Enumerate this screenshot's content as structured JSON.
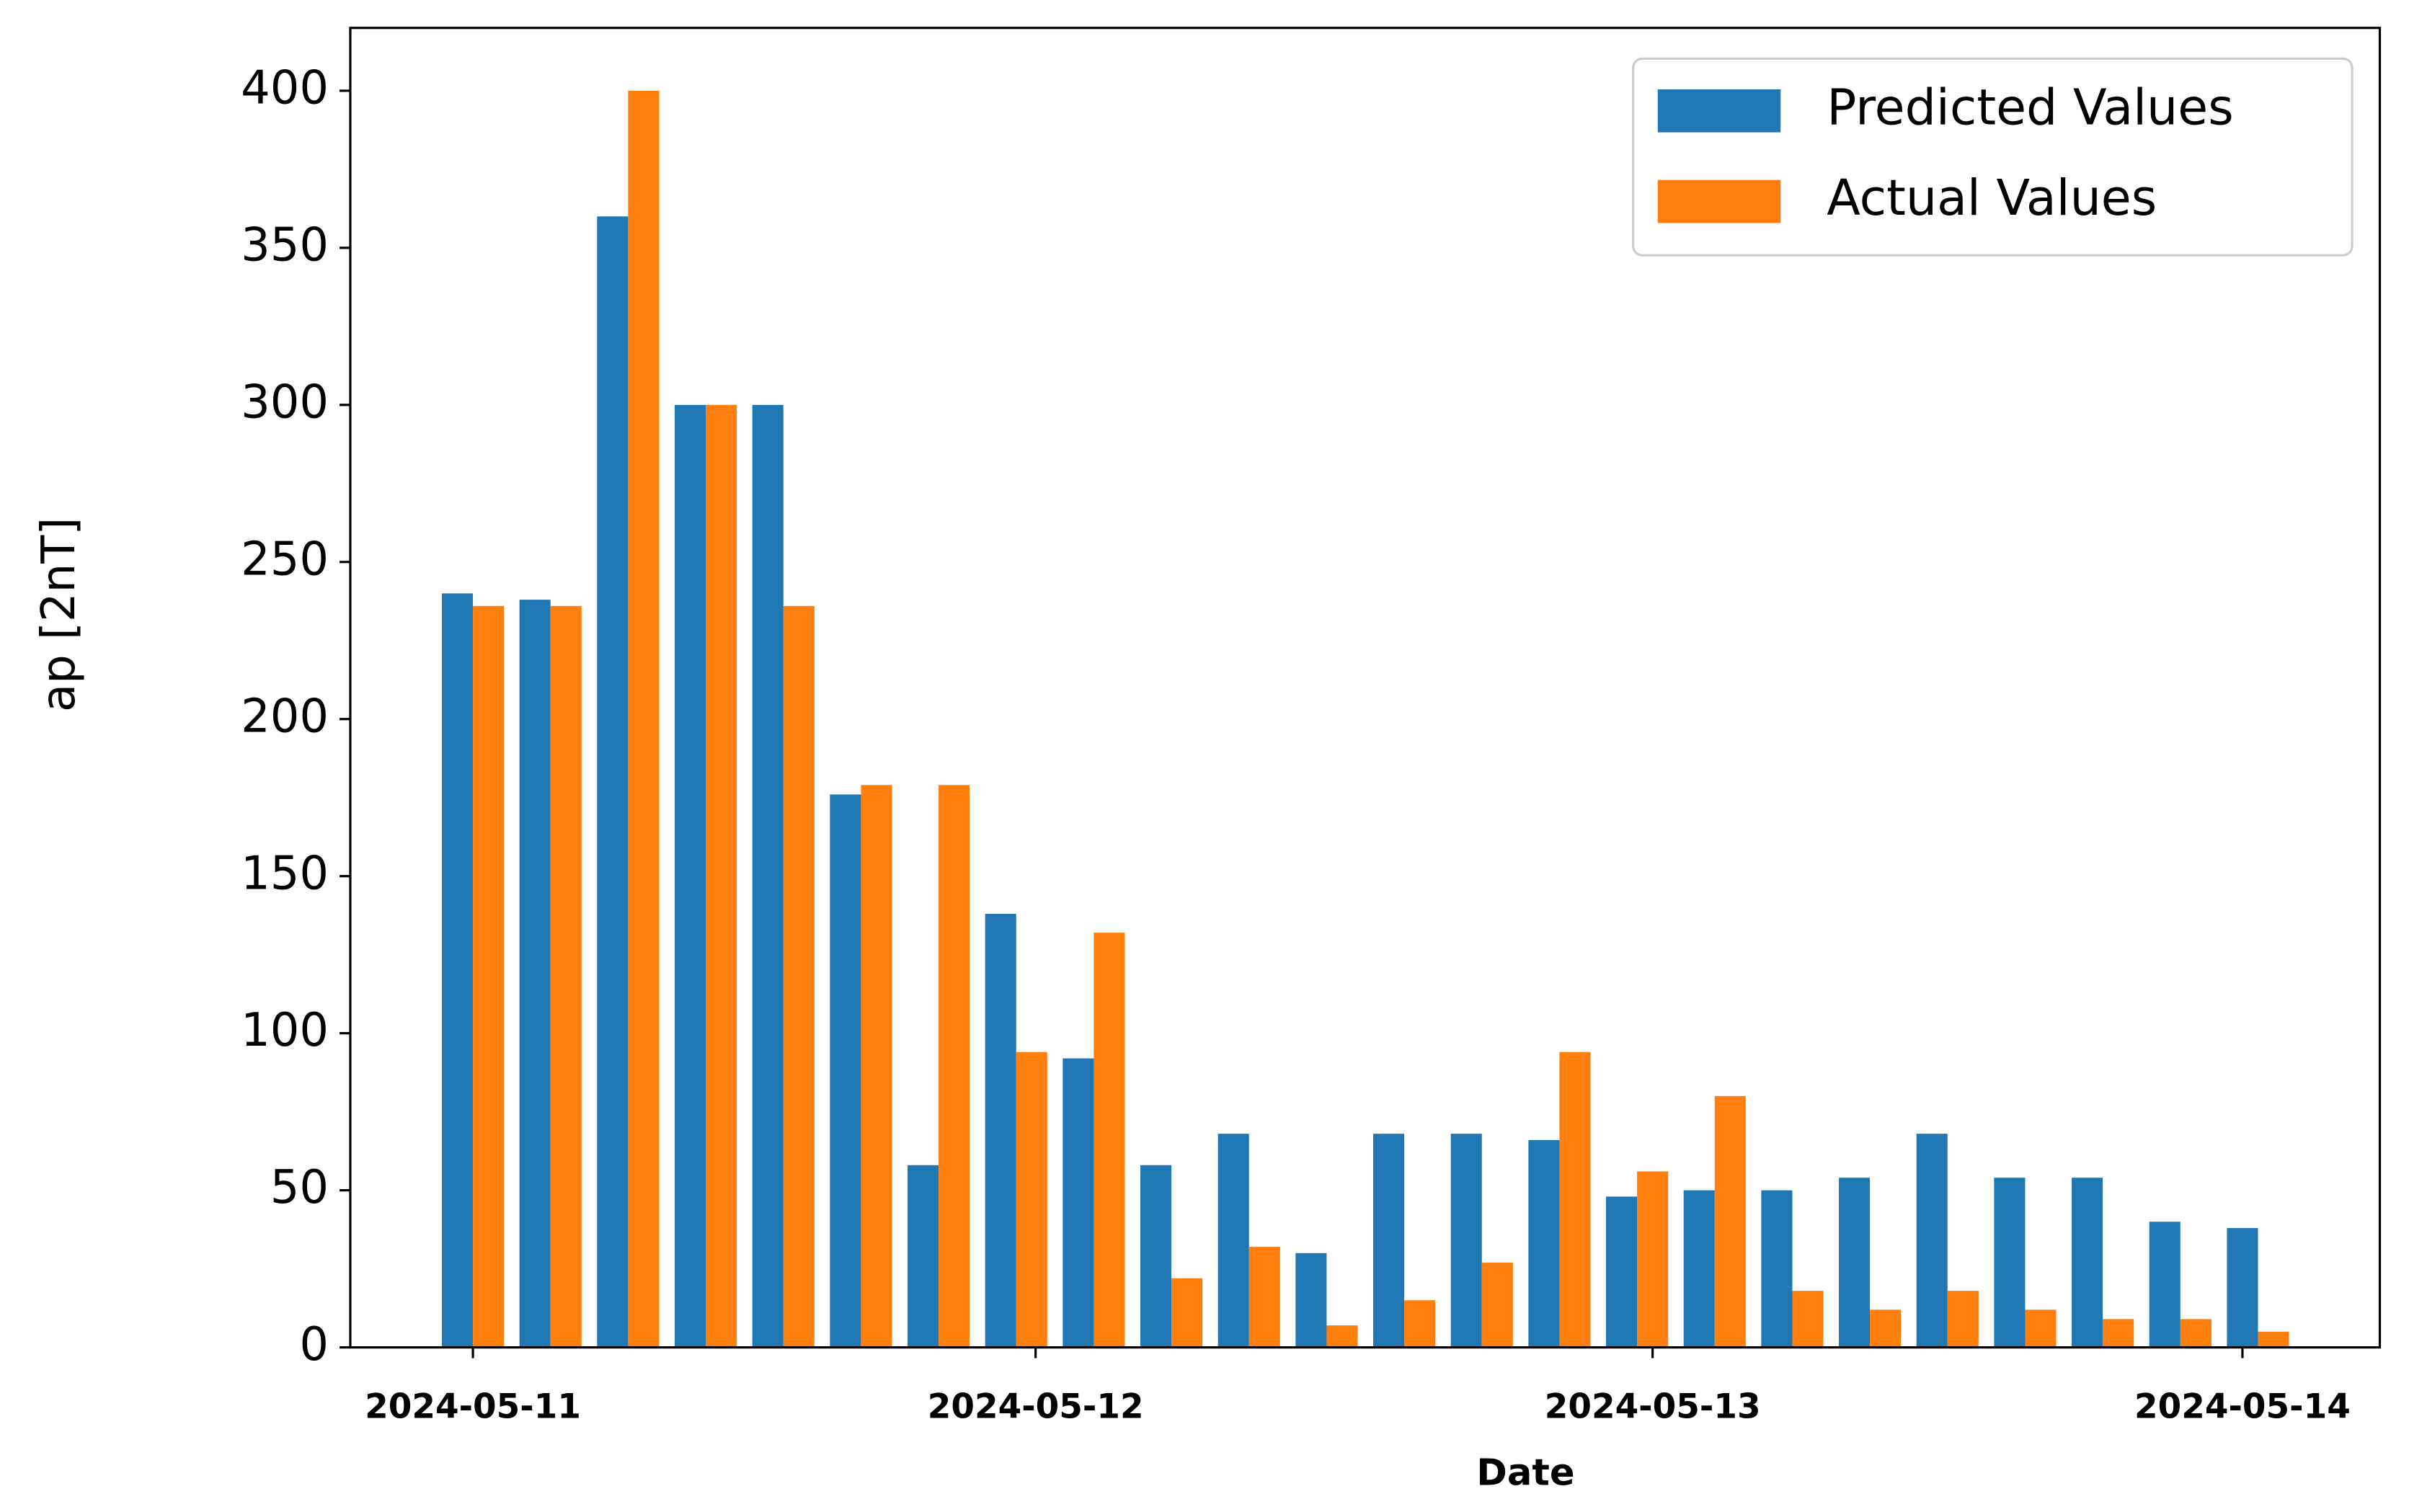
{
  "chart_data": {
    "type": "bar",
    "x": [
      0,
      1,
      2,
      3,
      4,
      5,
      6,
      7,
      8,
      9,
      10,
      11,
      12,
      13,
      14,
      15,
      16,
      17,
      18,
      19,
      20,
      21,
      22,
      23
    ],
    "series": [
      {
        "name": "Predicted Values",
        "color": "#1f77b4",
        "values": [
          240,
          238,
          360,
          300,
          300,
          176,
          58,
          138,
          92,
          58,
          68,
          30,
          68,
          68,
          66,
          48,
          50,
          50,
          54,
          68,
          54,
          54,
          40,
          38
        ]
      },
      {
        "name": "Actual Values",
        "color": "#ff7f0e",
        "values": [
          236,
          236,
          400,
          300,
          236,
          179,
          179,
          94,
          132,
          22,
          32,
          7,
          15,
          27,
          94,
          56,
          80,
          18,
          12,
          18,
          12,
          9,
          9,
          5
        ]
      }
    ],
    "xlim": [
      -1.58,
      24.57
    ],
    "xticks": [
      {
        "value": 0,
        "label": "2024-05-11"
      },
      {
        "value": 7.25,
        "label": "2024-05-12"
      },
      {
        "value": 15.2,
        "label": "2024-05-13"
      },
      {
        "value": 22.8,
        "label": "2024-05-14"
      }
    ],
    "ylim": [
      0,
      420
    ],
    "yticks": [
      0,
      50,
      100,
      150,
      200,
      250,
      300,
      350,
      400
    ],
    "xlabel": "Date",
    "ylabel": "ap [2nT]",
    "legend": "upper right",
    "grid": false
  }
}
